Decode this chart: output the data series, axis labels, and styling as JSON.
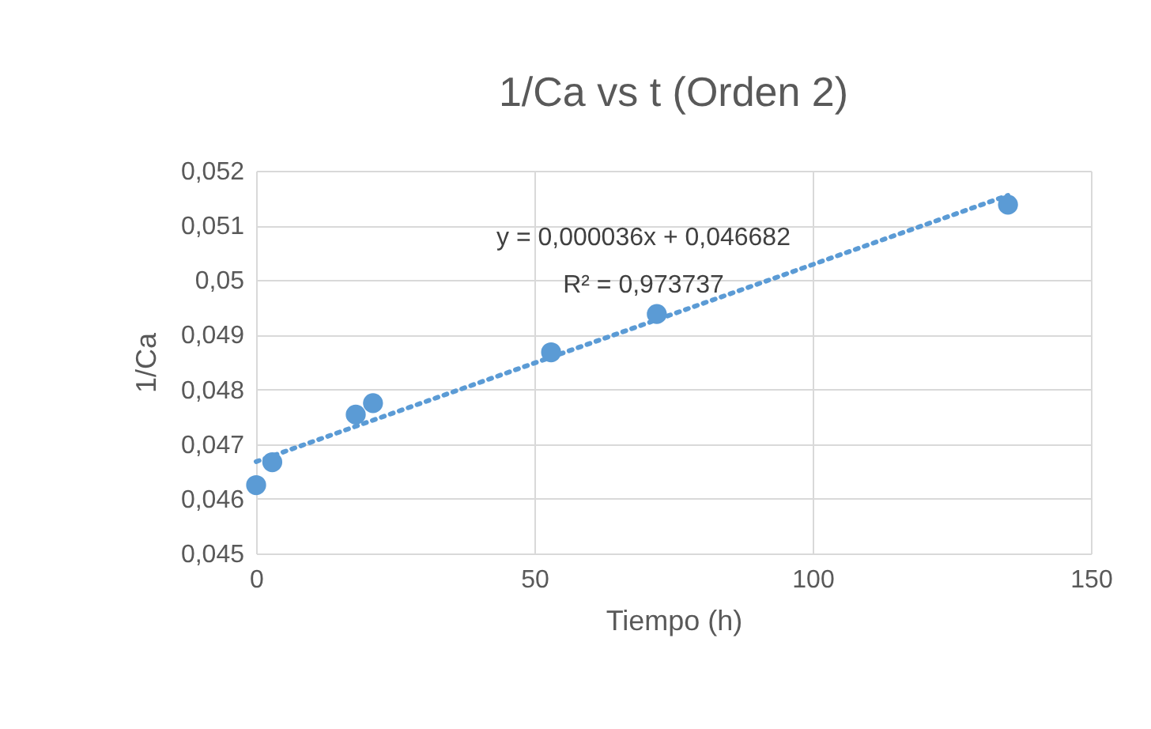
{
  "chart_data": {
    "type": "scatter",
    "title": "1/Ca vs t (Orden 2)",
    "xlabel": "Tiempo (h)",
    "ylabel": "1/Ca",
    "series": [
      {
        "color": "#5b9bd5",
        "x": [
          0,
          2.9,
          17.9,
          21,
          53,
          72,
          135.1
        ],
        "values": [
          0.04625,
          0.04667,
          0.04754,
          0.04775,
          0.04868,
          0.04938,
          0.05138
        ]
      },
      {
        "type": "line",
        "color": "#5b9bd5",
        "line_style": "dotted",
        "marker": "none",
        "x": [
          0,
          135.1
        ],
        "values": [
          0.04668,
          0.05155
        ]
      }
    ],
    "marker": "circle",
    "grid": true,
    "xlim": [
      0,
      150
    ],
    "xticks": [
      0,
      50,
      100,
      150
    ],
    "ylim": [
      0.045,
      0.052
    ],
    "yticks": [
      {
        "value": 0.045,
        "label": "0,045"
      },
      {
        "value": 0.046,
        "label": "0,046"
      },
      {
        "value": 0.047,
        "label": "0,047"
      },
      {
        "value": 0.048,
        "label": "0,048"
      },
      {
        "value": 0.049,
        "label": "0,049"
      },
      {
        "value": 0.05,
        "label": "0,05"
      },
      {
        "value": 0.051,
        "label": "0,051"
      },
      {
        "value": 0.052,
        "label": "0,052"
      }
    ],
    "annotations": [
      "y = 0,000036x + 0,046682",
      "R² = 0,973737"
    ]
  }
}
